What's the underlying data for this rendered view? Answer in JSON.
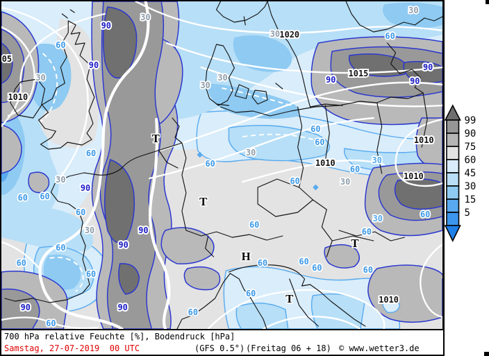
{
  "map": {
    "palette": {
      "humidity_99": "#707070",
      "humidity_90": "#999999",
      "humidity_75": "#b9b9b9",
      "humidity_60": "#e3e3e3",
      "humidity_45": "#d9edfb",
      "humidity_30": "#b7dff7",
      "humidity_15": "#8ecaf2",
      "humidity_5": "#58a9ee",
      "isobar_line": "#ffffff",
      "contour_90": "#2b38cf",
      "contour_60": "#56aaef",
      "coastline": "#141414",
      "label_90": "#1b1bc8",
      "label_60": "#3d9ae8",
      "label_30": "#8f9eab"
    },
    "labels": {
      "pressure": [
        [
          "05",
          8,
          87
        ],
        [
          "1010",
          24,
          142
        ],
        [
          "1020",
          418,
          52
        ],
        [
          "1015",
          518,
          108
        ],
        [
          "1010",
          470,
          237
        ],
        [
          "1010",
          613,
          204
        ],
        [
          "1010",
          598,
          256
        ],
        [
          "1010",
          562,
          434
        ]
      ],
      "h90": [
        [
          "90",
          152,
          39
        ],
        [
          "90",
          134,
          96
        ],
        [
          "90",
          619,
          99
        ],
        [
          "90",
          600,
          119
        ],
        [
          "90",
          478,
          117
        ],
        [
          "90",
          122,
          273
        ],
        [
          "90",
          206,
          334
        ],
        [
          "90",
          177,
          355
        ],
        [
          "90",
          35,
          445
        ],
        [
          "90",
          176,
          445
        ]
      ],
      "h60": [
        [
          "60",
          86,
          67
        ],
        [
          "60",
          564,
          54
        ],
        [
          "60",
          456,
          188
        ],
        [
          "60",
          462,
          207
        ],
        [
          "60",
          130,
          223
        ],
        [
          "60",
          303,
          238
        ],
        [
          "60",
          426,
          263
        ],
        [
          "60",
          513,
          246
        ],
        [
          "60",
          63,
          285
        ],
        [
          "60",
          31,
          287
        ],
        [
          "60",
          115,
          308
        ],
        [
          "60",
          615,
          311
        ],
        [
          "60",
          367,
          326
        ],
        [
          "60",
          530,
          336
        ],
        [
          "60",
          86,
          359
        ],
        [
          "60",
          29,
          381
        ],
        [
          "60",
          379,
          381
        ],
        [
          "60",
          439,
          379
        ],
        [
          "60",
          458,
          388
        ],
        [
          "60",
          130,
          397
        ],
        [
          "60",
          362,
          425
        ],
        [
          "60",
          532,
          391
        ],
        [
          "60",
          278,
          452
        ],
        [
          "60",
          72,
          468
        ]
      ],
      "h30_gray": [
        [
          "30",
          598,
          17
        ],
        [
          "30",
          209,
          27
        ],
        [
          "30",
          397,
          51
        ],
        [
          "30",
          57,
          114
        ],
        [
          "30",
          321,
          114
        ],
        [
          "30",
          296,
          125
        ],
        [
          "30",
          362,
          222
        ],
        [
          "30",
          86,
          261
        ],
        [
          "30",
          499,
          264
        ],
        [
          "30",
          128,
          334
        ]
      ],
      "h30_blue": [
        [
          "30",
          545,
          233
        ],
        [
          "30",
          546,
          317
        ]
      ],
      "centers": [
        [
          "T",
          224,
          203
        ],
        [
          "T",
          293,
          294
        ],
        [
          "T",
          418,
          434
        ],
        [
          "T",
          513,
          354
        ],
        [
          "H",
          355,
          373
        ]
      ]
    }
  },
  "legend": {
    "values": [
      "99",
      "90",
      "75",
      "60",
      "45",
      "30",
      "15",
      "5"
    ],
    "box_colors": [
      "#969696",
      "#b5b5b5",
      "#e3e3e3",
      "#d9ecfb",
      "#b9def6",
      "#8ecaf2",
      "#58a9ee",
      "#3c96ec"
    ],
    "arrow_top_color": "#6e6e6e",
    "arrow_bottom_color": "#1e7fe8"
  },
  "footer": {
    "line1": "700 hPa relative Feuchte [%], Bodendruck [hPa]",
    "datetime": "Samstag, 27-07-2019  00 UTC",
    "datetime_color": "#e00000",
    "model": "(GFS 0.5°)",
    "run": "(Freitag 06 + 18)",
    "credit": "© www.wetter3.de"
  }
}
